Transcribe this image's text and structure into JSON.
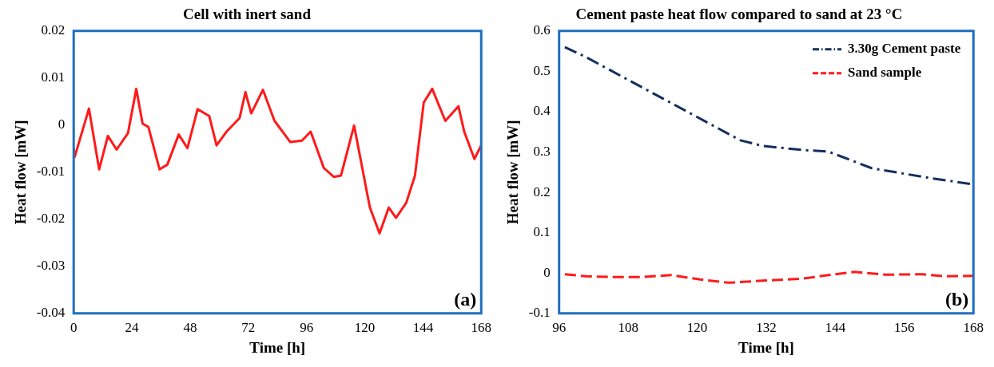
{
  "chart_data": [
    {
      "type": "line",
      "title": "Cell with inert sand",
      "xlabel": "Time [h]",
      "ylabel": "Heat flow [mW]",
      "annotations": [
        "(a)"
      ],
      "xlim": [
        0,
        168
      ],
      "xticks": [
        0,
        24,
        48,
        72,
        96,
        120,
        144,
        168
      ],
      "ylim": [
        -0.04,
        0.02
      ],
      "yticks": [
        -0.04,
        -0.03,
        -0.02,
        -0.01,
        0,
        0.01,
        0.02
      ],
      "grid": false,
      "legend": false,
      "marker": "none",
      "series": [
        {
          "color": "#ff1a1a",
          "line_style": "solid",
          "x": [
            0,
            0.4,
            6.3,
            10.5,
            14.1,
            17.7,
            22.4,
            25.8,
            28.4,
            30.8,
            35.4,
            38.6,
            43.3,
            46.9,
            51.1,
            55.9,
            58.9,
            63,
            68.4,
            70.8,
            73.2,
            78,
            82.8,
            89.3,
            94.1,
            97.7,
            103.1,
            107.2,
            110.2,
            115.6,
            122.1,
            126.1,
            129.9,
            132.9,
            137.1,
            140.7,
            144.3,
            147.8,
            153.2,
            155,
            158.6,
            161,
            165.2,
            168
          ],
          "values": [
            -0.005,
            -0.0068,
            0.0035,
            -0.0094,
            -0.0023,
            -0.0052,
            -0.0017,
            0.0077,
            0.0003,
            -0.0004,
            -0.0094,
            -0.0084,
            -0.002,
            -0.0049,
            0.0034,
            0.0019,
            -0.0043,
            -0.0014,
            0.0015,
            0.007,
            0.0025,
            0.0075,
            0.0009,
            -0.0036,
            -0.0033,
            -0.0014,
            -0.0091,
            -0.011,
            -0.0107,
            -0.0001,
            -0.0175,
            -0.023,
            -0.0175,
            -0.0197,
            -0.0165,
            -0.0107,
            0.0048,
            0.0077,
            0.0009,
            0.0019,
            0.004,
            -0.0014,
            -0.0072,
            -0.0043
          ]
        }
      ]
    },
    {
      "type": "line",
      "title": "Cement paste heat flow compared to sand at 23 °C",
      "xlabel": "Time [h]",
      "ylabel": "Heat flow [mW]",
      "annotations": [
        "(b)"
      ],
      "xlim": [
        96,
        168
      ],
      "xticks": [
        96,
        108,
        120,
        132,
        144,
        156,
        168
      ],
      "ylim": [
        -0.1,
        0.6
      ],
      "yticks": [
        -0.1,
        0,
        0.1,
        0.2,
        0.3,
        0.4,
        0.5,
        0.6
      ],
      "grid": false,
      "legend": "top right",
      "marker": "none",
      "series": [
        {
          "name": "3.30g Cement paste",
          "color": "#12305e",
          "line_style": "dashdot",
          "x": [
            97,
            100.7,
            127.5,
            131.4,
            138.3,
            142.8,
            150.3,
            160.2,
            167.4
          ],
          "values": [
            0.56,
            0.535,
            0.329,
            0.315,
            0.305,
            0.301,
            0.26,
            0.236,
            0.221
          ]
        },
        {
          "name": "Sand sample",
          "color": "#ff1a1a",
          "line_style": "dashed",
          "x": [
            97,
            100.7,
            105.6,
            110.1,
            115.5,
            120.5,
            125.5,
            131.4,
            138.3,
            142.8,
            147.3,
            152.7,
            159.2,
            163.1,
            168
          ],
          "values": [
            -0.003,
            -0.008,
            -0.01,
            -0.01,
            -0.005,
            -0.016,
            -0.024,
            -0.019,
            -0.014,
            -0.005,
            0.003,
            -0.004,
            -0.003,
            -0.008,
            -0.007
          ]
        }
      ]
    }
  ]
}
